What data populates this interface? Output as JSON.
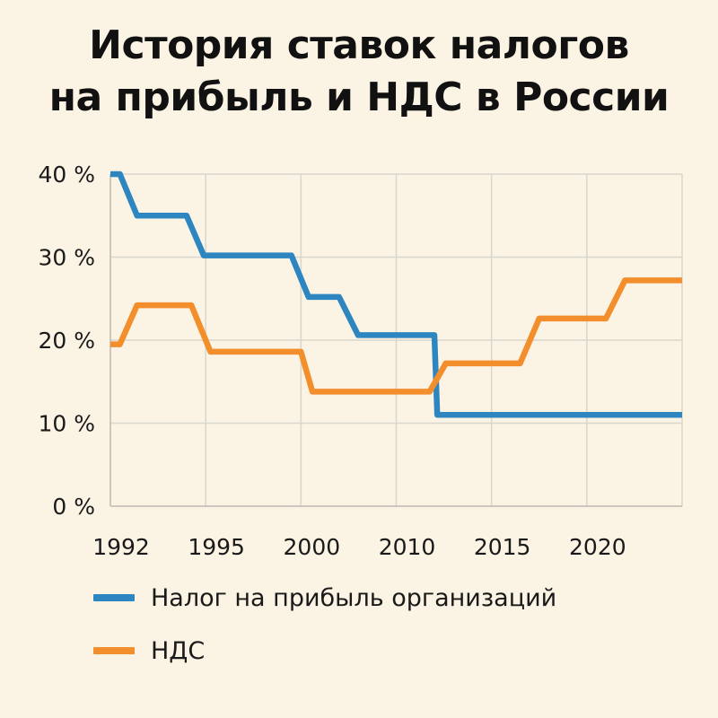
{
  "title": {
    "line1": "История ставок налогов",
    "line2": "на прибыль и НДС в России"
  },
  "chart_data": {
    "type": "line",
    "title": "История ставок налогов на прибыль и НДС в России",
    "xlabel": "",
    "ylabel": "",
    "x_ticks": [
      "1992",
      "1995",
      "2000",
      "2010",
      "2015",
      "2020"
    ],
    "y_ticks": [
      "0 %",
      "10 %",
      "20 %",
      "30 %",
      "40 %"
    ],
    "y_tick_values": [
      0,
      10,
      20,
      30,
      40
    ],
    "ylim": [
      0,
      40
    ],
    "x_positions": [
      0,
      1,
      2,
      3,
      4,
      5,
      6
    ],
    "xlim": [
      0,
      6
    ],
    "grid": true,
    "legend_position": "bottom-left",
    "series": [
      {
        "name": "Налог на прибыль организаций",
        "color": "#2E86C1",
        "x": [
          0,
          0.1,
          0.28,
          0.8,
          0.98,
          1.9,
          2.08,
          2.4,
          2.6,
          3.4,
          3.43,
          6.0
        ],
        "y": [
          40,
          40,
          35,
          35,
          30.2,
          30.2,
          25.2,
          25.2,
          20.6,
          20.6,
          11,
          11
        ]
      },
      {
        "name": "НДС",
        "color": "#F28E2B",
        "x": [
          0,
          0.1,
          0.28,
          0.85,
          1.05,
          2.0,
          2.12,
          3.35,
          3.52,
          4.3,
          4.5,
          5.2,
          5.4,
          6.0
        ],
        "y": [
          19.5,
          19.5,
          24.2,
          24.2,
          18.6,
          18.6,
          13.8,
          13.8,
          17.2,
          17.2,
          22.6,
          22.6,
          27.2,
          27.2
        ]
      }
    ]
  }
}
